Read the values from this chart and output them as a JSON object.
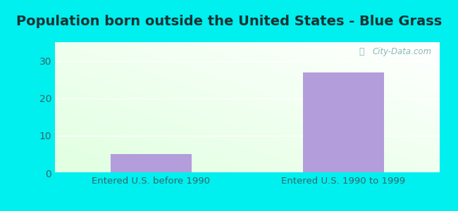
{
  "title": "Population born outside the United States - Blue Grass",
  "categories": [
    "Entered U.S. before 1990",
    "Entered U.S. 1990 to 1999"
  ],
  "values": [
    5,
    27
  ],
  "bar_color": "#b39ddb",
  "background_outer": "#00efef",
  "yticks": [
    0,
    10,
    20,
    30
  ],
  "ylim": [
    0,
    35
  ],
  "title_fontsize": 14,
  "tick_fontsize": 10,
  "xlabel_fontsize": 9.5,
  "watermark_text": "City-Data.com",
  "watermark_color": "#88b8b8",
  "ytick_color": "#336666",
  "xtick_color": "#336666",
  "title_color": "#1a3333"
}
